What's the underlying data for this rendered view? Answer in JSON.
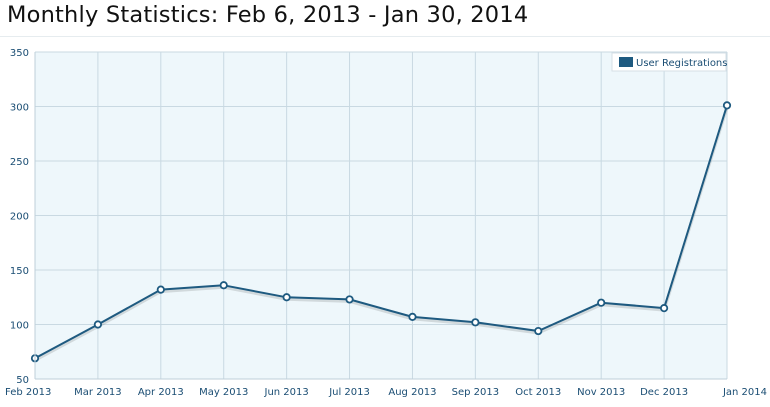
{
  "page": {
    "title": "Monthly Statistics: Feb 6, 2013 - Jan 30, 2014"
  },
  "chart_data": {
    "type": "line",
    "title": "",
    "xlabel": "",
    "ylabel": "",
    "categories": [
      "Feb 2013",
      "Mar 2013",
      "Apr 2013",
      "May 2013",
      "Jun 2013",
      "Jul 2013",
      "Aug 2013",
      "Sep 2013",
      "Oct 2013",
      "Nov 2013",
      "Dec 2013",
      "Jan 2014"
    ],
    "series": [
      {
        "name": "User Registrations",
        "values": [
          69,
          100,
          132,
          136,
          125,
          123,
          107,
          102,
          94,
          120,
          115,
          301
        ],
        "color": "#1e5a80"
      }
    ],
    "ylim": [
      50,
      350
    ],
    "yticks": [
      50,
      100,
      150,
      200,
      250,
      300,
      350
    ],
    "grid": true,
    "legend_position": "top-right",
    "colors": {
      "line": "#1e5a80",
      "fill": "#eef7fb",
      "grid": "#c9d9e2",
      "axis_text": "#1a4d73"
    }
  }
}
